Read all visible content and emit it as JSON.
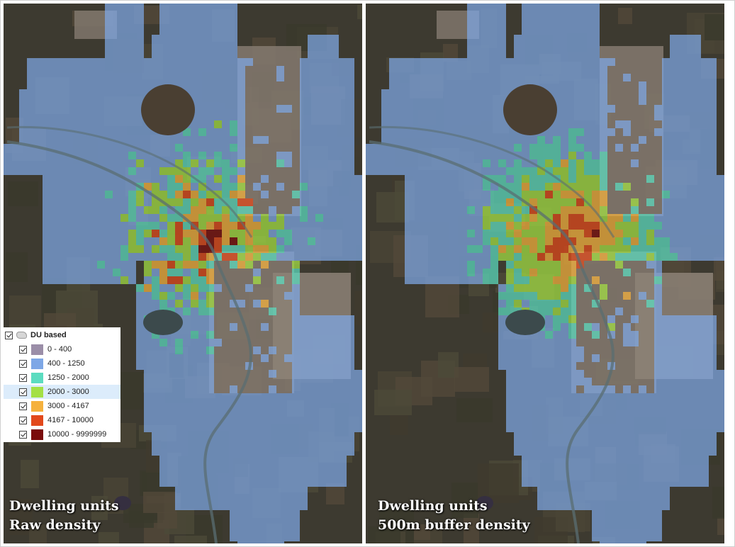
{
  "panels": [
    {
      "title_line1": "Dwelling units",
      "title_line2": "Raw density"
    },
    {
      "title_line1": "Dwelling units",
      "title_line2": "500m buffer density"
    }
  ],
  "legend": {
    "layer_name": "DU based",
    "classes": [
      {
        "label": "0 - 400",
        "color": "#9b8ea8"
      },
      {
        "label": "400 - 1250",
        "color": "#7ea7e6"
      },
      {
        "label": "1250 - 2000",
        "color": "#5cdcc0"
      },
      {
        "label": "2000 - 3000",
        "color": "#a4e044"
      },
      {
        "label": "3000 - 4167",
        "color": "#f5b13d"
      },
      {
        "label": "4167 - 10000",
        "color": "#e2481b"
      },
      {
        "label": "10000 - 9999999",
        "color": "#7a0c0c"
      }
    ],
    "highlighted_class": "2000 - 3000"
  },
  "colors": {
    "satellite_dark": "#3d3a30",
    "urban_gray": "#857a70",
    "lake": "#3c4a4c",
    "river": "#5a6e72"
  }
}
